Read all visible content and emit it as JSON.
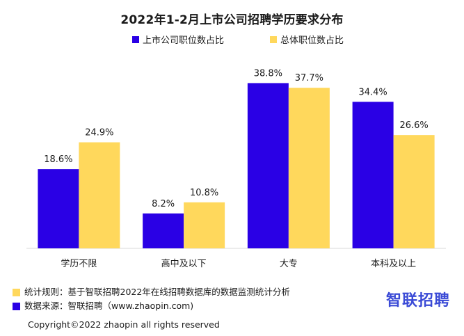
{
  "colors": {
    "series1": "#2a00e5",
    "series2": "#ffd85c",
    "brand": "#3a4ad6"
  },
  "chart_data": {
    "type": "bar",
    "title": "2022年1-2月上市公司招聘学历要求分布",
    "categories": [
      "学历不限",
      "高中及以下",
      "大专",
      "本科及以上"
    ],
    "series": [
      {
        "name": "上市公司职位数占比",
        "values": [
          18.6,
          8.2,
          38.8,
          34.4
        ],
        "labels": [
          "18.6%",
          "8.2%",
          "38.8%",
          "34.4%"
        ]
      },
      {
        "name": "总体职位数占比",
        "values": [
          24.9,
          10.8,
          37.7,
          26.6
        ],
        "labels": [
          "24.9%",
          "10.8%",
          "37.7%",
          "26.6%"
        ]
      }
    ],
    "ylim": [
      0,
      40
    ],
    "legend_position": "top",
    "grid": false
  },
  "notes": {
    "rule": "统计规则：基于智联招聘2022年在线招聘数据库的数据监测统计分析",
    "source": "数据来源：智联招聘（www.zhaopin.com)"
  },
  "brand": "智联招聘",
  "copyright": "Copyright©2022 zhaopin all rights reserved"
}
